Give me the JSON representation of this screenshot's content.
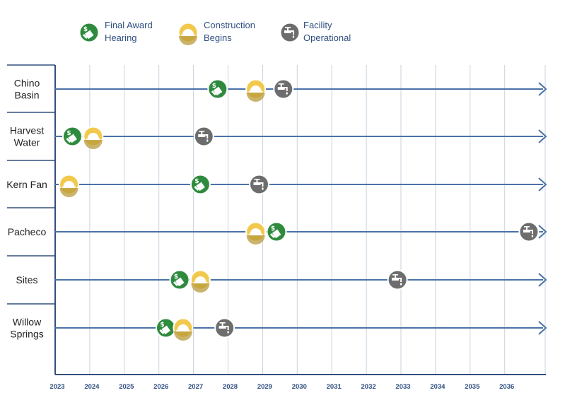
{
  "chart_data": {
    "type": "timeline",
    "x_range": [
      2023,
      2037
    ],
    "ticks": [
      "2023",
      "2024",
      "2025",
      "2026",
      "2027",
      "2028",
      "2029",
      "2030",
      "2031",
      "2032",
      "2033",
      "2034",
      "2035",
      "2036"
    ],
    "grid": "vertical",
    "legend_placement": "top",
    "milestones": [
      {
        "key": "award",
        "label_lines": [
          "Final Award",
          "Hearing"
        ],
        "color": "#2e8b3e",
        "icon": "document-money-icon"
      },
      {
        "key": "construction",
        "label_lines": [
          "Construction",
          "Begins"
        ],
        "color": "#f2c94c",
        "icon": "hard-hat-icon"
      },
      {
        "key": "operational",
        "label_lines": [
          "Facility",
          "Operational"
        ],
        "color": "#6d6d6d",
        "icon": "water-faucet-icon"
      }
    ],
    "projects": [
      {
        "label_lines": [
          "Chino",
          "Basin"
        ],
        "award": 2027.7,
        "construction": 2028.8,
        "operational": 2029.6
      },
      {
        "label_lines": [
          "Harvest",
          "Water"
        ],
        "award": 2023.5,
        "construction": 2024.1,
        "operational": 2027.3
      },
      {
        "label_lines": [
          "Kern Fan"
        ],
        "award": 2027.2,
        "construction": 2023.4,
        "operational": 2028.9
      },
      {
        "label_lines": [
          "Pacheco"
        ],
        "award": 2029.4,
        "construction": 2028.8,
        "operational": 2036.7
      },
      {
        "label_lines": [
          "Sites"
        ],
        "award": 2026.6,
        "construction": 2027.2,
        "operational": 2032.9
      },
      {
        "label_lines": [
          "Willow",
          "Springs"
        ],
        "award": 2026.2,
        "construction": 2026.7,
        "operational": 2027.9
      }
    ]
  }
}
